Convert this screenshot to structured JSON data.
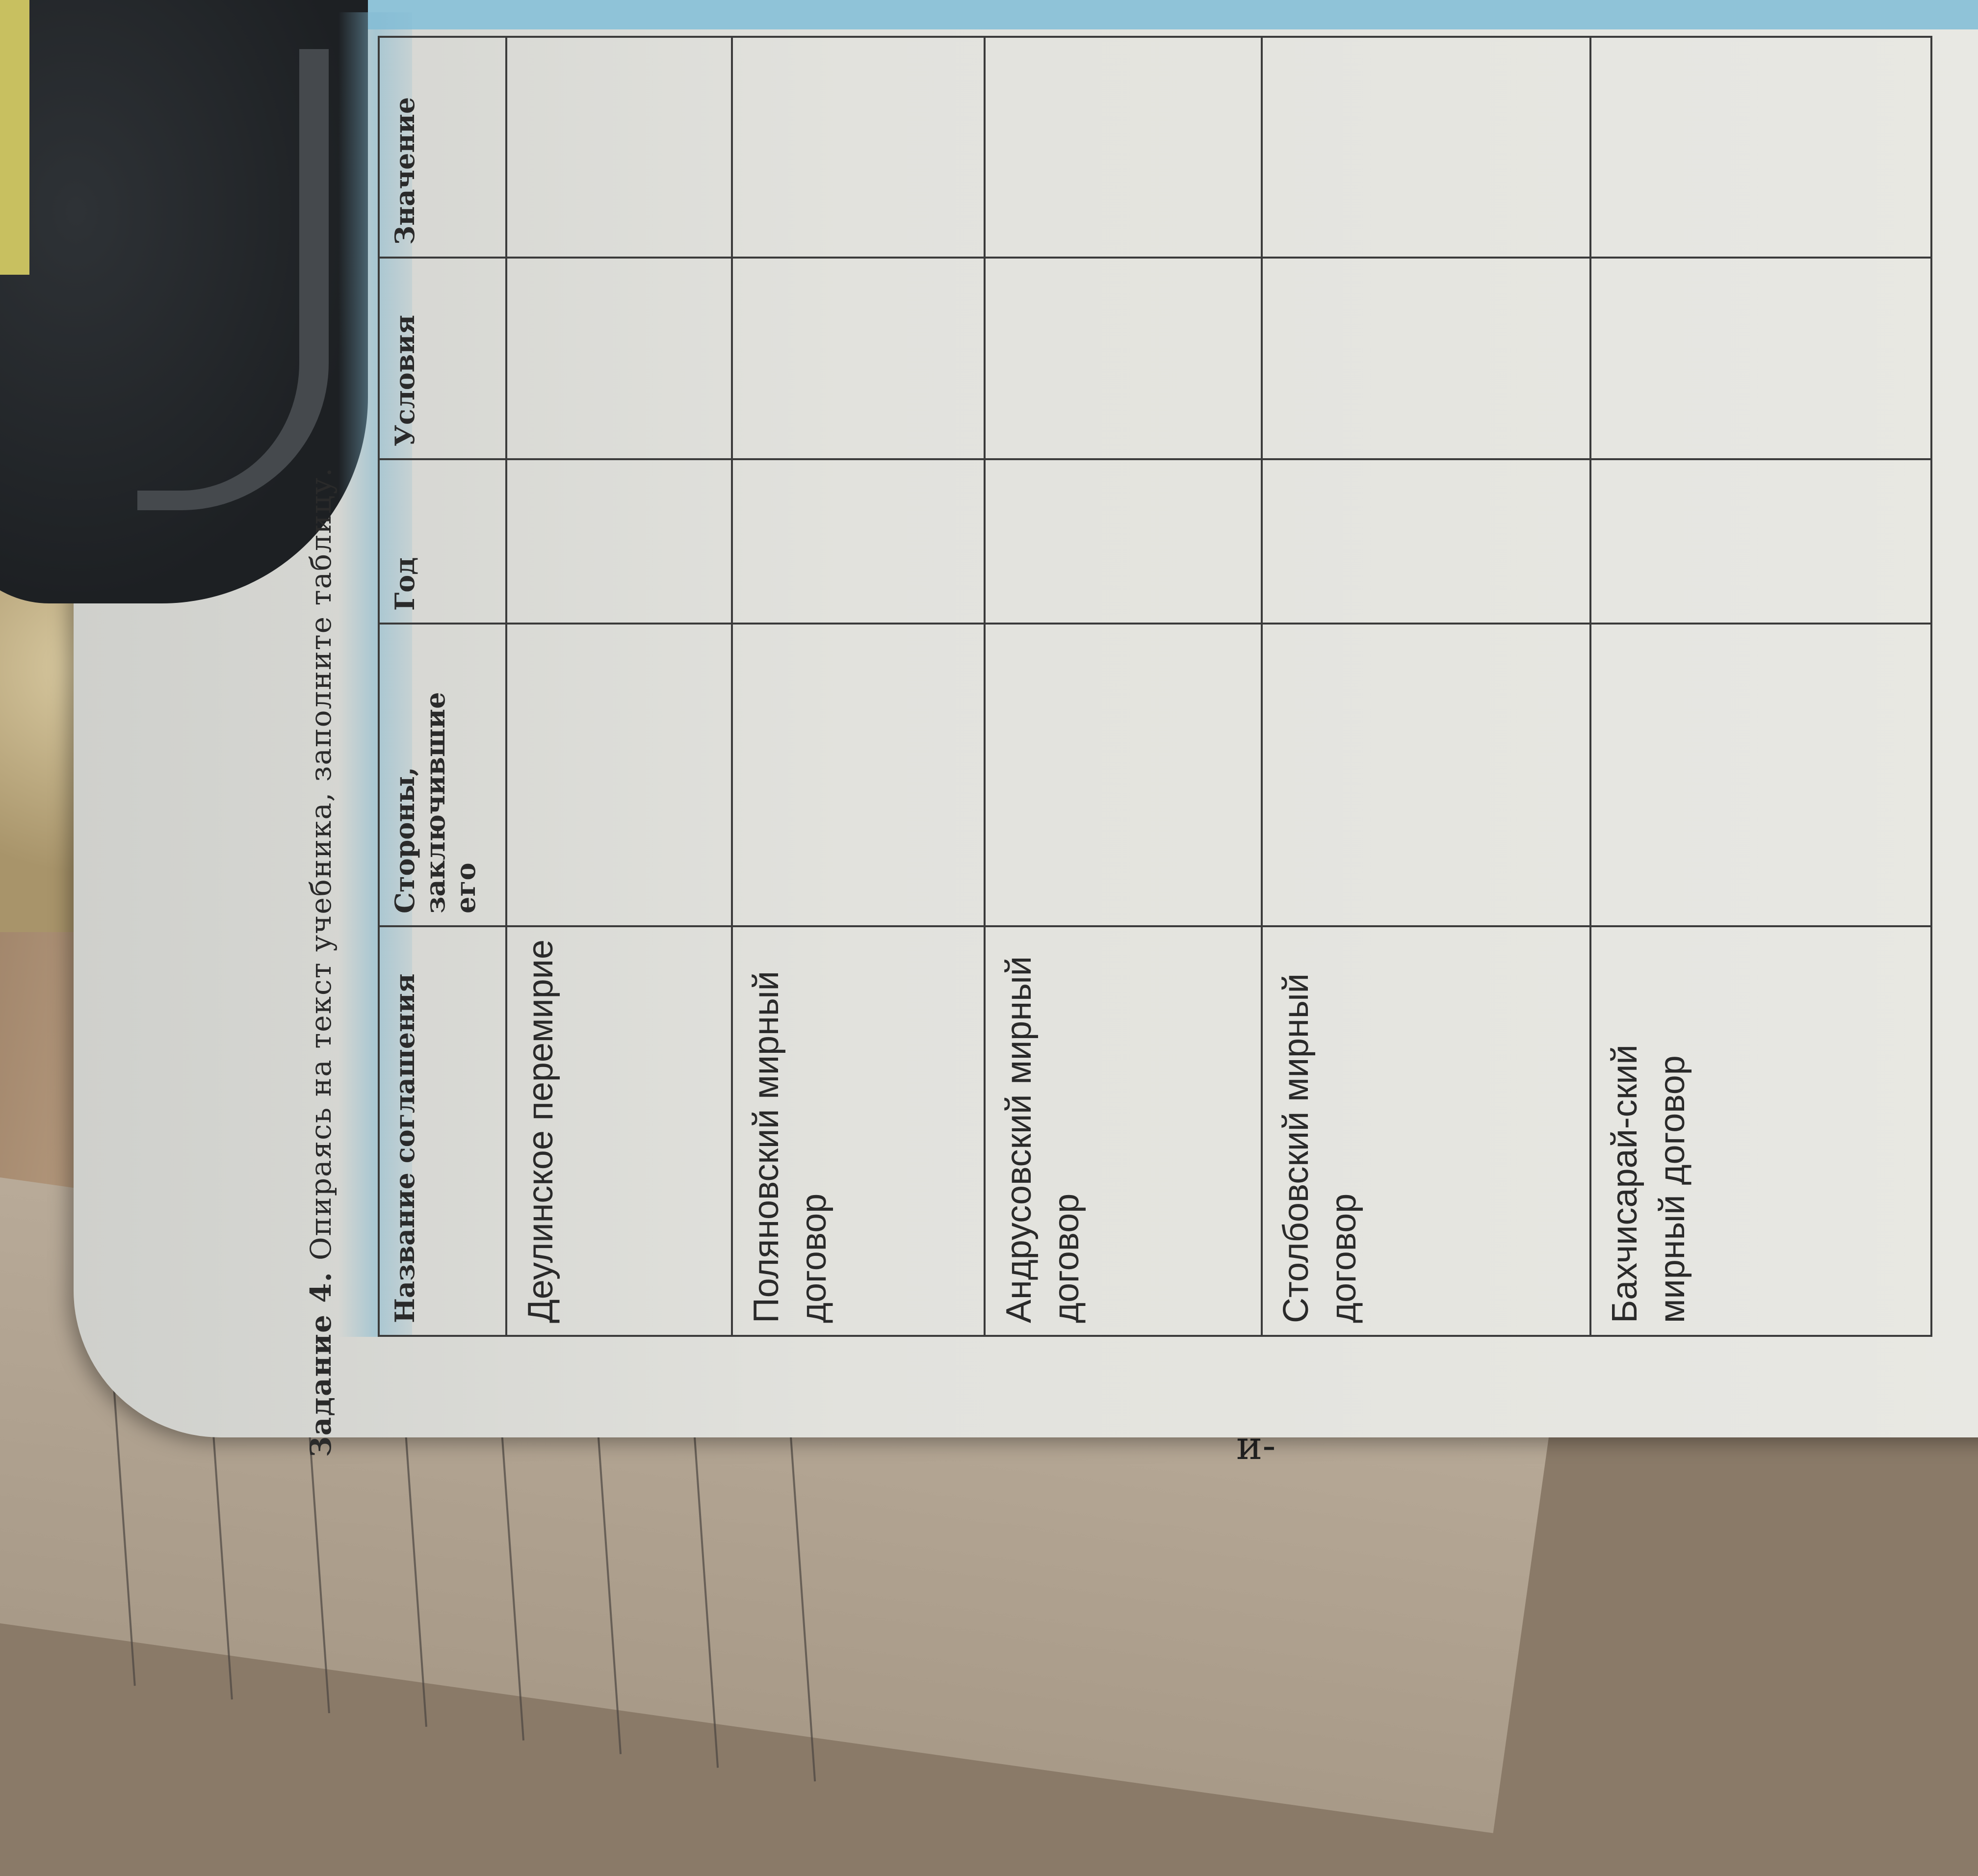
{
  "task": {
    "number_label": "Задание 4.",
    "instruction": "Опираясь на текст учебника, заполните таблицу."
  },
  "table": {
    "headers": [
      "Название соглашения",
      "Стороны, заключившие его",
      "Год",
      "Условия",
      "Значение"
    ],
    "rows": [
      {
        "name": "Деулинское перемирие"
      },
      {
        "name": "Поляновский мирный договор"
      },
      {
        "name": "Андрусовский мирный договор"
      },
      {
        "name": "Столбовский мирный договор"
      },
      {
        "name": "Бахчисарай-ский мирный договор"
      }
    ]
  },
  "left_page": {
    "fragment": "и-"
  },
  "colors": {
    "paper": "#e4e4df",
    "accent_band": "#8fc3d8",
    "grid": "#3b3b3b"
  }
}
